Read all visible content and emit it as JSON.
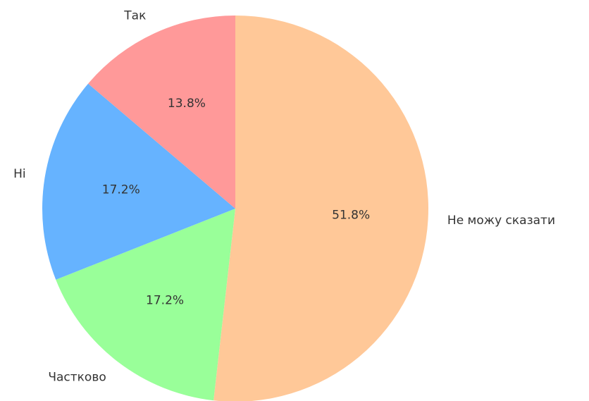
{
  "chart_data": {
    "type": "pie",
    "title": "",
    "start_angle_deg": 90,
    "direction": "clockwise",
    "slices": [
      {
        "label": "Не можу сказати",
        "value": 51.8,
        "pct_label": "51.8%",
        "color": "#ffc898"
      },
      {
        "label": "Частково",
        "value": 17.2,
        "pct_label": "17.2%",
        "color": "#99ff99"
      },
      {
        "label": "Ні",
        "value": 17.2,
        "pct_label": "17.2%",
        "color": "#66b3ff"
      },
      {
        "label": "Так",
        "value": 13.8,
        "pct_label": "13.8%",
        "color": "#ff9999"
      }
    ]
  }
}
